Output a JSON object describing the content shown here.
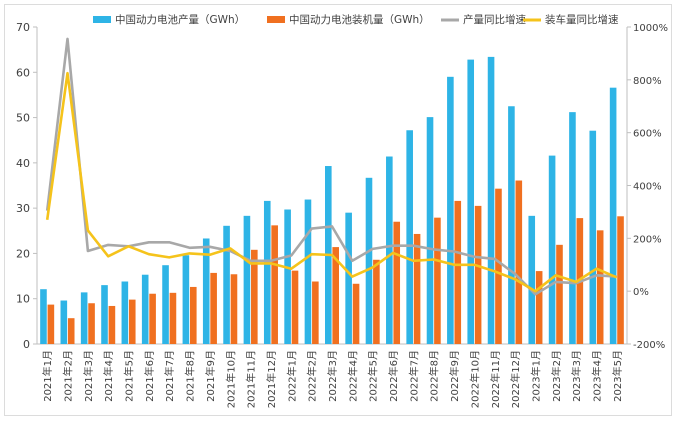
{
  "chart_data": {
    "type": "bar",
    "title": "",
    "categories": [
      "2021年1月",
      "2021年2月",
      "2021年3月",
      "2021年4月",
      "2021年5月",
      "2021年6月",
      "2021年7月",
      "2021年8月",
      "2021年9月",
      "2021年10月",
      "2021年11月",
      "2021年12月",
      "2022年1月",
      "2022年2月",
      "2022年3月",
      "2022年4月",
      "2022年5月",
      "2022年6月",
      "2022年7月",
      "2022年8月",
      "2022年9月",
      "2022年10月",
      "2022年11月",
      "2022年12月",
      "2023年1月",
      "2023年2月",
      "2023年3月",
      "2023年4月",
      "2023年5月"
    ],
    "series": [
      {
        "name": "中国动力电池产量（GWh）",
        "type": "bar",
        "axis": "left",
        "color": "#2eb4e6",
        "values": [
          12.1,
          9.6,
          11.4,
          13.0,
          13.8,
          15.3,
          17.4,
          19.6,
          23.3,
          26.1,
          28.3,
          31.6,
          29.7,
          31.9,
          39.3,
          29.0,
          36.7,
          41.4,
          47.2,
          50.1,
          59.0,
          62.8,
          63.4,
          52.5,
          28.3,
          41.6,
          51.2,
          47.1,
          56.6
        ]
      },
      {
        "name": "中国动力电池装机量（GWh）",
        "type": "bar",
        "axis": "left",
        "color": "#f07020",
        "values": [
          8.7,
          5.7,
          9.0,
          8.4,
          9.8,
          11.1,
          11.3,
          12.6,
          15.7,
          15.4,
          20.8,
          26.2,
          16.2,
          13.8,
          21.4,
          13.3,
          18.6,
          27.0,
          24.3,
          27.9,
          31.6,
          30.5,
          34.3,
          36.1,
          16.1,
          21.9,
          27.8,
          25.1,
          28.2
        ]
      },
      {
        "name": "产量同比增速",
        "type": "line",
        "axis": "right",
        "color": "#a8a8a8",
        "values": [
          305,
          955,
          152,
          175,
          170,
          185,
          185,
          164,
          168,
          152,
          115,
          115,
          135,
          237,
          245,
          115,
          160,
          172,
          172,
          158,
          150,
          130,
          122,
          65,
          -12,
          35,
          30,
          60,
          55
        ]
      },
      {
        "name": "装车量同比增速",
        "type": "line",
        "axis": "right",
        "color": "#f5c31b",
        "values": [
          270,
          825,
          230,
          132,
          170,
          140,
          128,
          143,
          138,
          162,
          105,
          105,
          85,
          140,
          137,
          55,
          90,
          145,
          115,
          120,
          100,
          100,
          75,
          45,
          0,
          60,
          35,
          85,
          52
        ]
      }
    ],
    "ylim": [
      0,
      70
    ],
    "yticks": [
      0,
      10,
      20,
      30,
      40,
      50,
      60,
      70
    ],
    "y2lim": [
      -200,
      1000
    ],
    "y2ticks": [
      "-200%",
      "0%",
      "200%",
      "400%",
      "600%",
      "800%",
      "1000%"
    ],
    "legend_position": "top",
    "grid": false
  }
}
